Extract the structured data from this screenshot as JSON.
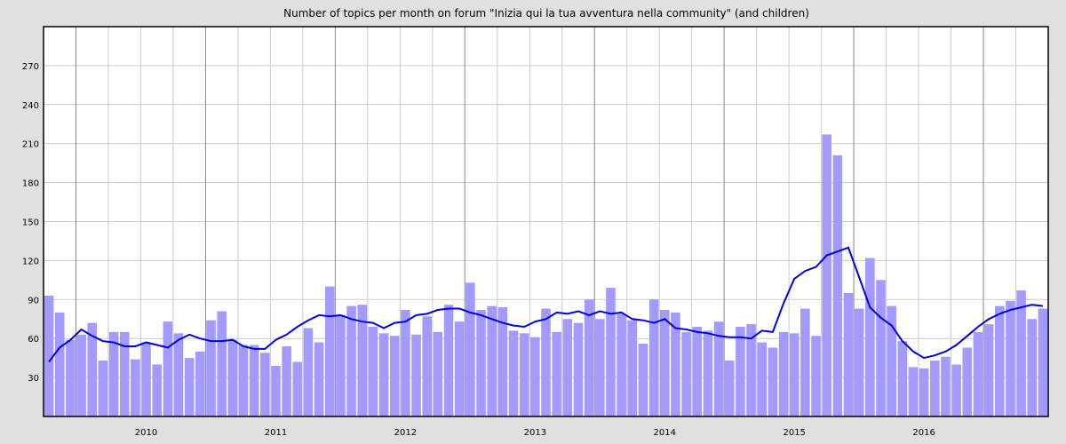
{
  "chart_data": {
    "type": "bar",
    "title": "Number of topics per month on forum \"Inizia qui la tua avventura nella community\" (and children)",
    "xlabel": "",
    "ylabel": "",
    "ylim": [
      0,
      300
    ],
    "yticks": [
      30,
      60,
      90,
      120,
      150,
      180,
      210,
      240,
      270
    ],
    "grid": true,
    "x_range": [
      "2009-04",
      "2016-12"
    ],
    "year_labels": [
      "2010",
      "2011",
      "2012",
      "2013",
      "2014",
      "2015",
      "2016"
    ],
    "months": [
      "2009-04",
      "2009-05",
      "2009-06",
      "2009-07",
      "2009-08",
      "2009-09",
      "2009-10",
      "2009-11",
      "2009-12",
      "2010-01",
      "2010-02",
      "2010-03",
      "2010-04",
      "2010-05",
      "2010-06",
      "2010-07",
      "2010-08",
      "2010-09",
      "2010-10",
      "2010-11",
      "2010-12",
      "2011-01",
      "2011-02",
      "2011-03",
      "2011-04",
      "2011-05",
      "2011-06",
      "2011-07",
      "2011-08",
      "2011-09",
      "2011-10",
      "2011-11",
      "2011-12",
      "2012-01",
      "2012-02",
      "2012-03",
      "2012-04",
      "2012-05",
      "2012-06",
      "2012-07",
      "2012-08",
      "2012-09",
      "2012-10",
      "2012-11",
      "2012-12",
      "2013-01",
      "2013-02",
      "2013-03",
      "2013-04",
      "2013-05",
      "2013-06",
      "2013-07",
      "2013-08",
      "2013-09",
      "2013-10",
      "2013-11",
      "2013-12",
      "2014-01",
      "2014-02",
      "2014-03",
      "2014-04",
      "2014-05",
      "2014-06",
      "2014-07",
      "2014-08",
      "2014-09",
      "2014-10",
      "2014-11",
      "2014-12",
      "2015-01",
      "2015-02",
      "2015-03",
      "2015-04",
      "2015-05",
      "2015-06",
      "2015-07",
      "2015-08",
      "2015-09",
      "2015-10",
      "2015-11",
      "2015-12",
      "2016-01",
      "2016-02",
      "2016-03",
      "2016-04",
      "2016-05",
      "2016-06",
      "2016-07",
      "2016-08",
      "2016-09",
      "2016-10",
      "2016-11",
      "2016-12"
    ],
    "series": [
      {
        "type": "bar",
        "color": "#a39aff",
        "values": [
          93,
          80,
          59,
          63,
          72,
          43,
          65,
          65,
          44,
          57,
          40,
          73,
          64,
          45,
          50,
          74,
          81,
          59,
          55,
          55,
          49,
          39,
          54,
          42,
          68,
          57,
          100,
          78,
          85,
          86,
          69,
          64,
          62,
          82,
          63,
          77,
          65,
          86,
          73,
          103,
          82,
          85,
          84,
          66,
          64,
          61,
          83,
          65,
          75,
          72,
          90,
          75,
          99,
          79,
          74,
          56,
          90,
          82,
          80,
          65,
          69,
          66,
          73,
          43,
          69,
          71,
          57,
          53,
          65,
          64,
          83,
          62,
          217,
          201,
          95,
          83,
          122,
          105,
          85,
          58,
          38,
          37,
          43,
          46,
          40,
          53,
          65,
          71,
          85,
          89,
          97,
          75,
          83
        ]
      },
      {
        "type": "line",
        "color": "#0000dd",
        "values": [
          42,
          53,
          59,
          67,
          62,
          58,
          57,
          54,
          54,
          57,
          55,
          53,
          59,
          63,
          60,
          58,
          58,
          59,
          54,
          52,
          52,
          59,
          63,
          69,
          74,
          78,
          77,
          78,
          75,
          73,
          72,
          68,
          72,
          73,
          78,
          79,
          82,
          83,
          83,
          80,
          78,
          75,
          72,
          70,
          69,
          73,
          75,
          80,
          79,
          81,
          78,
          81,
          79,
          80,
          75,
          74,
          72,
          75,
          68,
          67,
          65,
          64,
          62,
          61,
          61,
          60,
          66,
          65,
          87,
          106,
          112,
          115,
          124,
          127,
          130,
          107,
          84,
          76,
          70,
          58,
          50,
          45,
          47,
          50,
          55,
          62,
          69,
          75,
          79,
          82,
          84,
          86,
          85
        ]
      }
    ]
  }
}
